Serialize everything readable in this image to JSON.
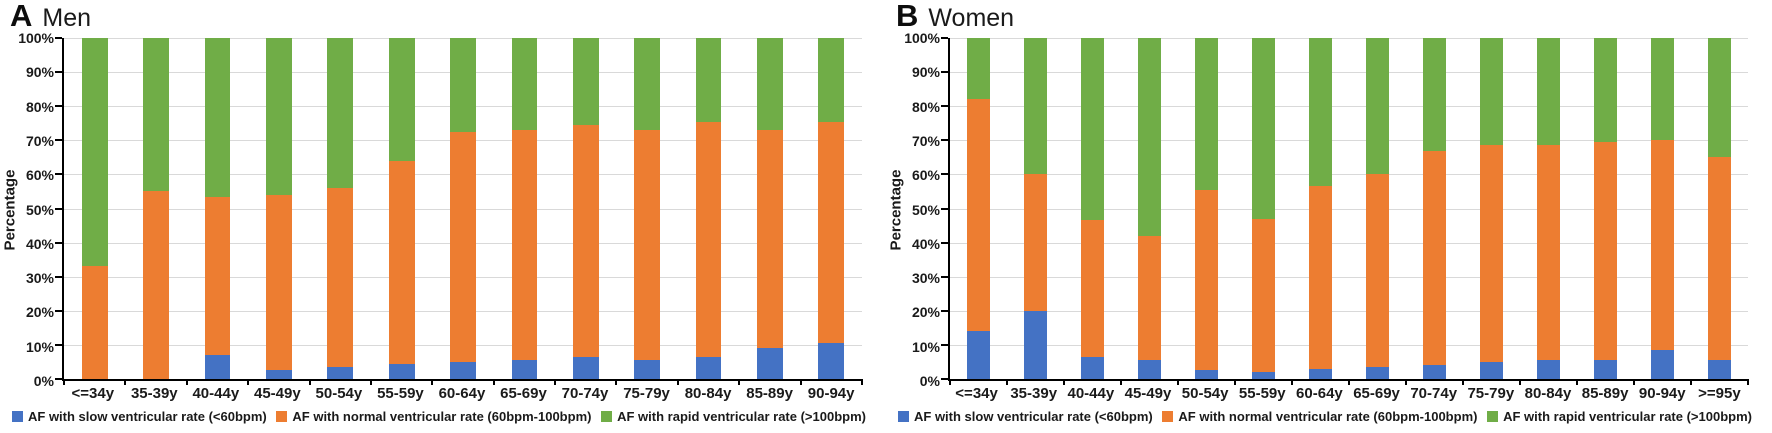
{
  "figure": {
    "background": "#ffffff",
    "axis_color": "#000000",
    "gridline_color": "#d9d9d9",
    "text_color": "#1a1a1a"
  },
  "legend": [
    {
      "key": "slow",
      "label": "AF with slow ventricular rate (<60bpm)",
      "color": "#4472C4"
    },
    {
      "key": "normal",
      "label": "AF with normal ventricular rate (60bpm-100bpm)",
      "color": "#ED7D31"
    },
    {
      "key": "rapid",
      "label": "AF with rapid ventricular rate (>100bpm)",
      "color": "#70AD47"
    }
  ],
  "chart_data": [
    {
      "type": "bar",
      "stacked": true,
      "panel_label": "A",
      "title": "Men",
      "ylabel": "Percentage",
      "ylim": [
        0,
        100
      ],
      "grid": true,
      "legend_position": "bottom",
      "y_tick_labels": [
        "100%",
        "90%",
        "80%",
        "70%",
        "60%",
        "50%",
        "40%",
        "30%",
        "20%",
        "10%",
        "0%"
      ],
      "categories": [
        "<=34y",
        "35-39y",
        "40-44y",
        "45-49y",
        "50-54y",
        "55-59y",
        "60-64y",
        "65-69y",
        "70-74y",
        "75-79y",
        "80-84y",
        "85-89y",
        "90-94y"
      ],
      "series": [
        {
          "name": "AF with slow ventricular rate (<60bpm)",
          "color": "#4472C4",
          "values": [
            0,
            0,
            7,
            2.5,
            3.5,
            4.5,
            5,
            5.5,
            6.5,
            5.5,
            6.5,
            9,
            10.5
          ]
        },
        {
          "name": "AF with normal ventricular rate (60bpm-100bpm)",
          "color": "#ED7D31",
          "values": [
            33,
            55,
            46.5,
            51.5,
            52.5,
            59.5,
            67.5,
            67.5,
            68,
            67.5,
            69,
            64,
            65
          ]
        },
        {
          "name": "AF with rapid ventricular rate (>100bpm)",
          "color": "#70AD47",
          "values": [
            67,
            45,
            46.5,
            46,
            44,
            36,
            27.5,
            27,
            25.5,
            27,
            24.5,
            27,
            24.5
          ]
        }
      ]
    },
    {
      "type": "bar",
      "stacked": true,
      "panel_label": "B",
      "title": "Women",
      "ylabel": "Percentage",
      "ylim": [
        0,
        100
      ],
      "grid": true,
      "legend_position": "bottom",
      "y_tick_labels": [
        "100%",
        "90%",
        "80%",
        "70%",
        "60%",
        "50%",
        "40%",
        "30%",
        "20%",
        "10%",
        "0%"
      ],
      "categories": [
        "<=34y",
        "35-39y",
        "40-44y",
        "45-49y",
        "50-54y",
        "55-59y",
        "60-64y",
        "65-69y",
        "70-74y",
        "75-79y",
        "80-84y",
        "85-89y",
        "90-94y",
        ">=95y"
      ],
      "series": [
        {
          "name": "AF with slow ventricular rate (<60bpm)",
          "color": "#4472C4",
          "values": [
            14,
            20,
            6.5,
            5.5,
            2.5,
            2,
            3,
            3.5,
            4,
            5,
            5.5,
            5.5,
            8.5,
            5.5
          ]
        },
        {
          "name": "AF with normal ventricular rate (60bpm-100bpm)",
          "color": "#ED7D31",
          "values": [
            68,
            40,
            40,
            36.5,
            53,
            45,
            53.5,
            56.5,
            63,
            63.5,
            63,
            64,
            61.5,
            59.5
          ]
        },
        {
          "name": "AF with rapid ventricular rate (>100bpm)",
          "color": "#70AD47",
          "values": [
            18,
            40,
            53.5,
            58,
            44.5,
            53,
            43.5,
            40,
            33,
            31.5,
            31.5,
            30.5,
            30,
            35
          ]
        }
      ]
    }
  ]
}
